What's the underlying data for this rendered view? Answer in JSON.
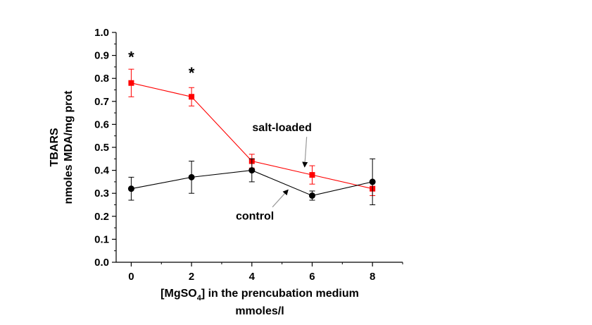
{
  "chart_data": {
    "type": "line",
    "ylabel_line1": "TBARS",
    "ylabel_line2": "nmoles MDA/mg prot",
    "xlabel_pre": "[MgSO",
    "xlabel_sub": "4",
    "xlabel_post": "] in the prencubation medium",
    "xlabel_line2": "mmoles/l",
    "xlim": [
      -0.5,
      9
    ],
    "ylim": [
      0,
      1.0
    ],
    "x_ticks": [
      0,
      2,
      4,
      6,
      8
    ],
    "x_tick_labels": [
      "0",
      "2",
      "4",
      "6",
      "8"
    ],
    "y_ticks": [
      0.0,
      0.1,
      0.2,
      0.3,
      0.4,
      0.5,
      0.6,
      0.7,
      0.8,
      0.9,
      1.0
    ],
    "y_tick_labels": [
      "0.0",
      "0.1",
      "0.2",
      "0.3",
      "0.4",
      "0.5",
      "0.6",
      "0.7",
      "0.8",
      "0.9",
      "1.0"
    ],
    "series": [
      {
        "name": "salt-loaded",
        "color": "#ff0000",
        "marker": "square",
        "x": [
          0,
          2,
          4,
          6,
          8
        ],
        "y": [
          0.78,
          0.72,
          0.44,
          0.38,
          0.32
        ],
        "err": [
          0.06,
          0.04,
          0.03,
          0.04,
          0.03
        ]
      },
      {
        "name": "control",
        "color": "#000000",
        "marker": "circle",
        "x": [
          0,
          2,
          4,
          6,
          8
        ],
        "y": [
          0.32,
          0.37,
          0.4,
          0.29,
          0.35
        ],
        "err": [
          0.05,
          0.07,
          0.05,
          0.02,
          0.1
        ]
      }
    ],
    "annotations": [
      {
        "text": "salt-loaded",
        "series": "salt-loaded",
        "label_x": 5.0,
        "label_y": 0.57,
        "arrow_x": 5.75,
        "arrow_y": 0.415
      },
      {
        "text": "control",
        "series": "control",
        "label_x": 4.1,
        "label_y": 0.185,
        "arrow_x": 5.2,
        "arrow_y": 0.315
      },
      {
        "text": "*",
        "label_x": 0,
        "label_y": 0.87
      },
      {
        "text": "*",
        "label_x": 2,
        "label_y": 0.8
      }
    ]
  }
}
